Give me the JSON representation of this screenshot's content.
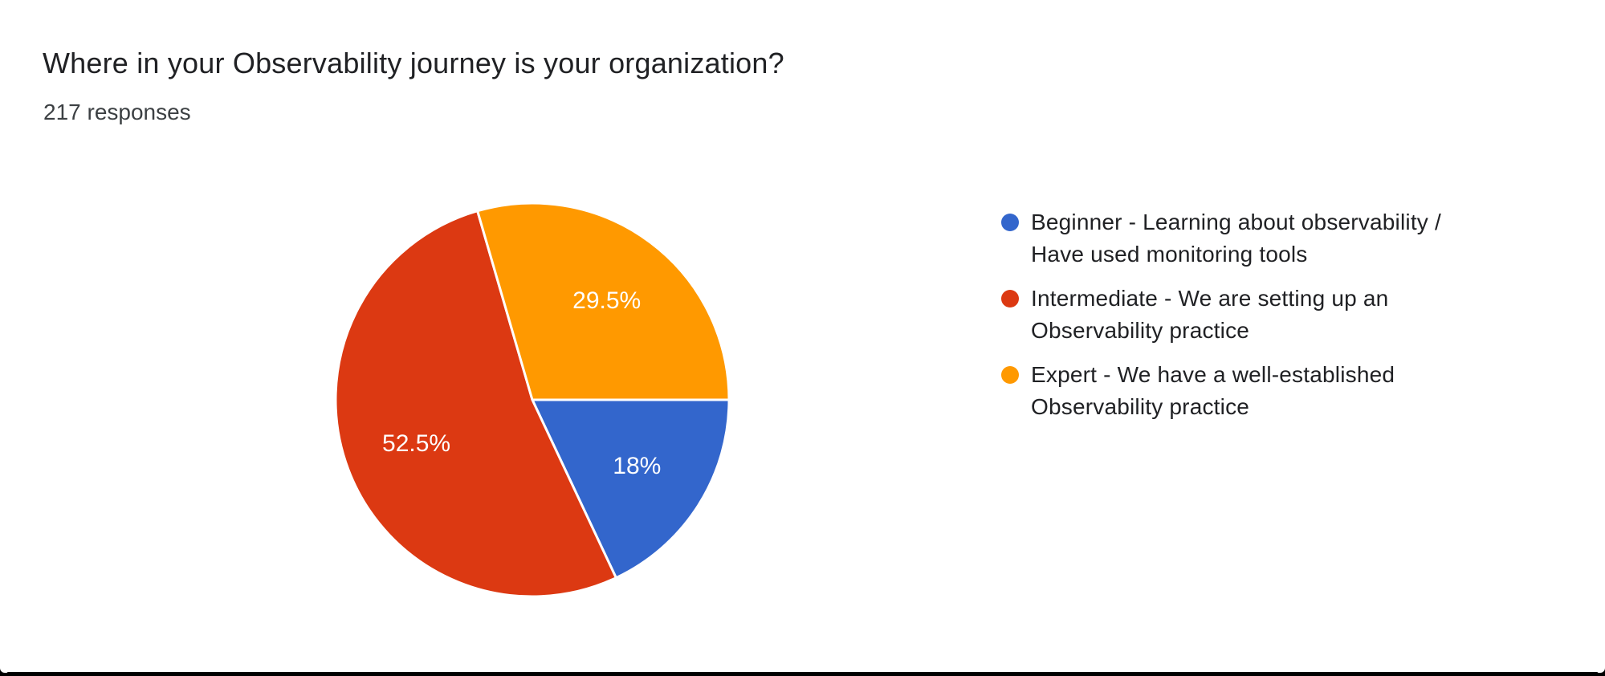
{
  "header": {
    "title": "Where in your Observability journey is your organization?",
    "responses_label": "217 responses"
  },
  "chart_data": {
    "type": "pie",
    "title": "Where in your Observability journey is your organization?",
    "subtitle": "217 responses",
    "total_responses": 217,
    "start_angle": "first slice starts at 3 o'clock, slices sweep clockwise",
    "legend_position": "right",
    "slices": [
      {
        "key": "beginner",
        "label": "Beginner - Learning about observability / Have used monitoring tools",
        "percent": 18,
        "display_percent": "18%",
        "color": "#3366CC"
      },
      {
        "key": "intermediate",
        "label": "Intermediate - We are setting up an Observability practice",
        "percent": 52.5,
        "display_percent": "52.5%",
        "color": "#DC3912"
      },
      {
        "key": "expert",
        "label": "Expert - We have a well-established Observability practice",
        "percent": 29.5,
        "display_percent": "29.5%",
        "color": "#FF9900"
      }
    ]
  },
  "legend": {
    "items": [
      {
        "key": "beginner",
        "color": "#3366CC",
        "lines": [
          "Beginner - Learning about observability /",
          "Have used monitoring tools"
        ]
      },
      {
        "key": "intermediate",
        "color": "#DC3912",
        "lines": [
          "Intermediate - We are setting up an",
          "Observability practice"
        ]
      },
      {
        "key": "expert",
        "color": "#FF9900",
        "lines": [
          "Expert - We have a well-established",
          "Observability practice"
        ]
      }
    ]
  },
  "colors": {
    "text_primary": "#202124",
    "text_secondary": "#3c4043",
    "background": "#ffffff",
    "frame": "#000000",
    "slice_label_text": "#ffffff",
    "slice_border": "#ffffff"
  }
}
